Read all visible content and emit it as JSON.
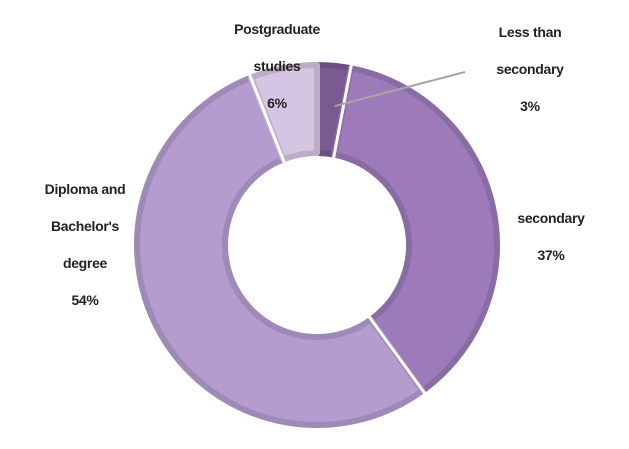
{
  "chart_data": {
    "type": "donut",
    "categories": [
      "Less than secondary",
      "secondary",
      "Diploma and Bachelor's degree",
      "Postgraduate studies"
    ],
    "values": [
      3,
      37,
      54,
      6
    ],
    "value_labels": [
      "3%",
      "37%",
      "54%",
      "6%"
    ],
    "colors": [
      "#7b5a94",
      "#9d7bba",
      "#b59ccf",
      "#d5c5e2"
    ],
    "legend": false
  }
}
